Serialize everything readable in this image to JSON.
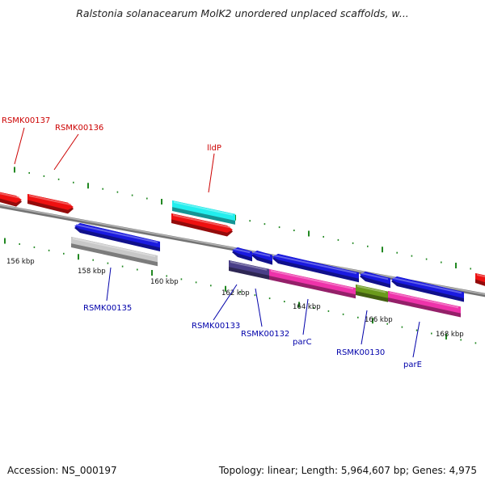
{
  "title": "Ralstonia solanacearum MolK2 unordered unplaced scaffolds, w...",
  "footer": {
    "accession": "Accession: NS_000197",
    "summary": "Topology: linear; Length: 5,964,607 bp; Genes: 4,975"
  },
  "tick_labels": [
    "156 kbp",
    "158 kbp",
    "160 kbp",
    "162 kbp",
    "164 kbp",
    "166 kbp",
    "168 kbp"
  ],
  "colors": {
    "red": "#ee1111",
    "cyan": "#22eeee",
    "blue": "#1a1ae0",
    "grey": "#c8c8c8",
    "navy": "#4a3f88",
    "pink": "#ee33aa",
    "olive": "#6a9a1c",
    "tick": "#228822",
    "backbone": "#888888",
    "label_red": "#cc0000",
    "label_blue": "#0000aa"
  },
  "features": [
    {
      "id": "frag-left-red",
      "color": "red",
      "dir": "fwd",
      "label": ""
    },
    {
      "id": "RSMK00136",
      "color": "red",
      "dir": "fwd",
      "label": "RSMK00136"
    },
    {
      "id": "RSMK00135",
      "color": "blue",
      "dir": "rev",
      "label": "RSMK00135"
    },
    {
      "id": "RSMK00135-product",
      "color": "grey",
      "dir": "none",
      "label": ""
    },
    {
      "id": "lldP-product",
      "color": "cyan",
      "dir": "none",
      "label": ""
    },
    {
      "id": "lldP",
      "color": "red",
      "dir": "fwd",
      "label": "lldP"
    },
    {
      "id": "RSMK00133",
      "color": "blue",
      "dir": "rev",
      "label": ""
    },
    {
      "id": "RSMK00132",
      "color": "blue",
      "dir": "rev",
      "label": ""
    },
    {
      "id": "parC",
      "color": "blue",
      "dir": "rev",
      "label": ""
    },
    {
      "id": "RSMK00130",
      "color": "blue",
      "dir": "rev",
      "label": ""
    },
    {
      "id": "parE",
      "color": "blue",
      "dir": "rev",
      "label": ""
    },
    {
      "id": "RSMK00133-product",
      "color": "navy",
      "dir": "none",
      "label": "RSMK00133"
    },
    {
      "id": "RSMK00132-product",
      "color": "pink",
      "dir": "none",
      "label": "RSMK00132"
    },
    {
      "id": "parC-product",
      "color": "olive",
      "dir": "none",
      "label": "parC"
    },
    {
      "id": "RSMK00130-product",
      "color": "pink",
      "dir": "none",
      "label": "RSMK00130"
    },
    {
      "id": "frag-right-red",
      "color": "red",
      "dir": "fwd",
      "label": ""
    },
    {
      "id": "RSMK00137-label-only",
      "color": "red",
      "dir": "none",
      "label": "RSMK00137"
    },
    {
      "id": "parE-label-only",
      "color": "blue",
      "dir": "none",
      "label": "parE"
    }
  ]
}
